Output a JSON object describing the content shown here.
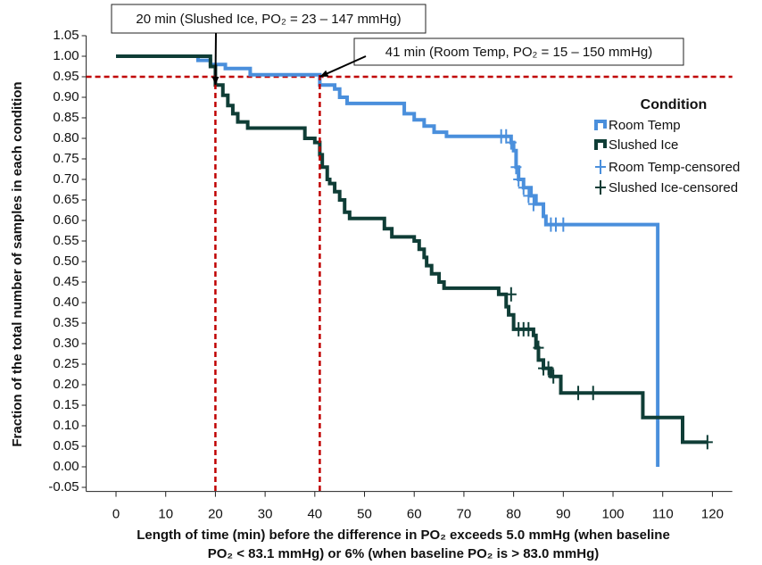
{
  "chart_data": {
    "type": "step",
    "y_label": "Fraction of the total number of samples in each condition",
    "x_label": [
      "Length of time (min) before the difference in PO₂ exceeds 5.0 mmHg (when baseline",
      "PO₂ < 83.1 mmHg) or 6% (when baseline PO₂ is > 83.0 mmHg)"
    ],
    "legend_title": "Condition",
    "xlim": [
      -6,
      124
    ],
    "xticks": [
      0,
      10,
      20,
      30,
      40,
      50,
      60,
      70,
      80,
      90,
      100,
      110,
      120
    ],
    "ylim": [
      -0.06,
      1.05
    ],
    "yticks": [
      1.05,
      {
        "value": 1.0,
        "label": "1.00"
      },
      0.95,
      {
        "value": 0.9,
        "label": "0.90"
      },
      0.85,
      {
        "value": 0.8,
        "label": "0.80"
      },
      0.75,
      {
        "value": 0.7,
        "label": "0.70"
      },
      0.65,
      {
        "value": 0.6,
        "label": "0.60"
      },
      0.55,
      {
        "value": 0.5,
        "label": "0.50"
      },
      0.45,
      {
        "value": 0.4,
        "label": "0.40"
      },
      0.35,
      {
        "value": 0.3,
        "label": "0.30"
      },
      0.25,
      {
        "value": 0.2,
        "label": "0.20"
      },
      0.15,
      {
        "value": 0.1,
        "label": "0.10"
      },
      0.05,
      {
        "value": 0,
        "label": "0.00"
      },
      -0.05
    ],
    "series": [
      {
        "name": "Room Temp",
        "color": "#4a8fdc",
        "marker": "step",
        "x": [
          0,
          16.5,
          19,
          22,
          27,
          41,
          44,
          45,
          46.5,
          58,
          60,
          62,
          64,
          66.5,
          79.5,
          80,
          80.5,
          81,
          82,
          83.5,
          84.5,
          86,
          86.5,
          109
        ],
        "values": [
          1.0,
          0.99,
          0.98,
          0.97,
          0.955,
          0.93,
          0.92,
          0.9,
          0.885,
          0.86,
          0.845,
          0.83,
          0.815,
          0.805,
          0.79,
          0.77,
          0.73,
          0.7,
          0.68,
          0.66,
          0.64,
          0.61,
          0.59,
          0.0
        ]
      },
      {
        "name": "Slushed Ice",
        "color": "#0f3d36",
        "marker": "step",
        "x": [
          0,
          19,
          20,
          21.5,
          22.5,
          23.5,
          24.5,
          26.5,
          38,
          40,
          41,
          41.5,
          42.5,
          43,
          44,
          45,
          46,
          47,
          54,
          55.5,
          60,
          61,
          62,
          62.5,
          63.5,
          65,
          66,
          77,
          78.5,
          79,
          80,
          84,
          84.5,
          85,
          86,
          87.5,
          89.5,
          106,
          114,
          119
        ],
        "values": [
          1.0,
          0.975,
          0.93,
          0.905,
          0.88,
          0.86,
          0.84,
          0.825,
          0.8,
          0.79,
          0.76,
          0.73,
          0.7,
          0.69,
          0.67,
          0.65,
          0.62,
          0.605,
          0.58,
          0.56,
          0.55,
          0.53,
          0.51,
          0.49,
          0.47,
          0.45,
          0.435,
          0.42,
          0.39,
          0.37,
          0.335,
          0.32,
          0.29,
          0.26,
          0.24,
          0.22,
          0.18,
          0.12,
          0.06,
          0.06
        ]
      },
      {
        "name": "Room Temp-censored",
        "color": "#4a8fdc",
        "marker": "plus",
        "x": [
          77.5,
          78.5,
          79.5,
          80.5,
          81,
          82,
          83,
          84,
          87.5,
          88.5,
          90
        ],
        "values": [
          0.805,
          0.805,
          0.79,
          0.73,
          0.7,
          0.68,
          0.66,
          0.64,
          0.59,
          0.59,
          0.59
        ]
      },
      {
        "name": "Slushed Ice-censored",
        "color": "#0f3d36",
        "marker": "plus",
        "x": [
          79.5,
          81,
          82,
          83,
          85,
          86,
          87,
          88,
          93,
          96,
          119
        ],
        "values": [
          0.42,
          0.335,
          0.335,
          0.335,
          0.29,
          0.24,
          0.24,
          0.22,
          0.18,
          0.18,
          0.06
        ]
      }
    ],
    "reference_lines": {
      "color": "#c00000",
      "y": 0.95,
      "x": [
        20,
        41
      ]
    },
    "annotations": [
      {
        "text": "20 min (Slushed Ice, PO₂ = 23 – 147 mmHg)",
        "x": 20,
        "y": 0.93
      },
      {
        "text": "41 min (Room Temp, PO₂ = 15 – 150 mmHg)",
        "x": 41,
        "y": 0.95
      }
    ]
  }
}
